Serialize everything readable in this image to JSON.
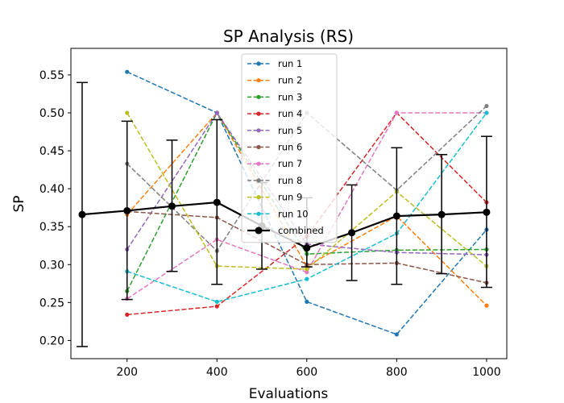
{
  "chart_data": {
    "type": "line",
    "title": "SP Analysis (RS)",
    "xlabel": "Evaluations",
    "ylabel": "SP",
    "xlim": [
      75,
      1045
    ],
    "ylim": [
      0.176,
      0.585
    ],
    "xticks": [
      200,
      400,
      600,
      800,
      1000
    ],
    "yticks": [
      0.2,
      0.25,
      0.3,
      0.35,
      0.4,
      0.45,
      0.5,
      0.55
    ],
    "ytick_labels": [
      "0.20",
      "0.25",
      "0.30",
      "0.35",
      "0.40",
      "0.45",
      "0.50",
      "0.55"
    ],
    "grid": false,
    "legend_position": "upper center",
    "x": [
      200,
      400,
      600,
      800,
      1000
    ],
    "series": [
      {
        "name": "run 1",
        "color": "#1f77b4",
        "style": "dashed",
        "values": [
          0.554,
          0.5,
          0.251,
          0.208,
          0.346
        ]
      },
      {
        "name": "run 2",
        "color": "#ff7f0e",
        "style": "dashed",
        "values": [
          0.366,
          0.5,
          0.298,
          0.364,
          0.246
        ]
      },
      {
        "name": "run 3",
        "color": "#2ca02c",
        "style": "dashed",
        "values": [
          0.265,
          0.5,
          0.314,
          0.319,
          0.32
        ]
      },
      {
        "name": "run 4",
        "color": "#d62728",
        "style": "dashed",
        "values": [
          0.234,
          0.245,
          0.337,
          0.5,
          0.382
        ]
      },
      {
        "name": "run 5",
        "color": "#9467bd",
        "style": "dashed",
        "values": [
          0.32,
          0.5,
          0.327,
          0.316,
          0.313
        ]
      },
      {
        "name": "run 6",
        "color": "#8c564b",
        "style": "dashed",
        "values": [
          0.37,
          0.362,
          0.3,
          0.302,
          0.276
        ]
      },
      {
        "name": "run 7",
        "color": "#e377c2",
        "style": "dashed",
        "values": [
          0.255,
          0.333,
          0.29,
          0.5,
          0.5
        ]
      },
      {
        "name": "run 8",
        "color": "#7f7f7f",
        "style": "dashed",
        "values": [
          0.433,
          0.318,
          0.5,
          0.398,
          0.509
        ]
      },
      {
        "name": "run 9",
        "color": "#bcbd22",
        "style": "dashed",
        "values": [
          0.5,
          0.298,
          0.294,
          0.396,
          0.298
        ]
      },
      {
        "name": "run 10",
        "color": "#17becf",
        "style": "dashed",
        "values": [
          0.291,
          0.251,
          0.281,
          0.341,
          0.5
        ]
      }
    ],
    "combined": {
      "name": "combined",
      "color": "#000000",
      "x": [
        100,
        200,
        300,
        400,
        500,
        600,
        700,
        800,
        900,
        1000
      ],
      "mean": [
        0.366,
        0.371,
        0.377,
        0.382,
        0.351,
        0.322,
        0.342,
        0.364,
        0.366,
        0.369
      ],
      "lower": [
        0.192,
        0.254,
        0.291,
        0.274,
        0.294,
        0.297,
        0.279,
        0.274,
        0.288,
        0.27
      ],
      "upper": [
        0.54,
        0.489,
        0.464,
        0.491,
        0.408,
        0.388,
        0.405,
        0.454,
        0.445,
        0.469
      ]
    }
  }
}
